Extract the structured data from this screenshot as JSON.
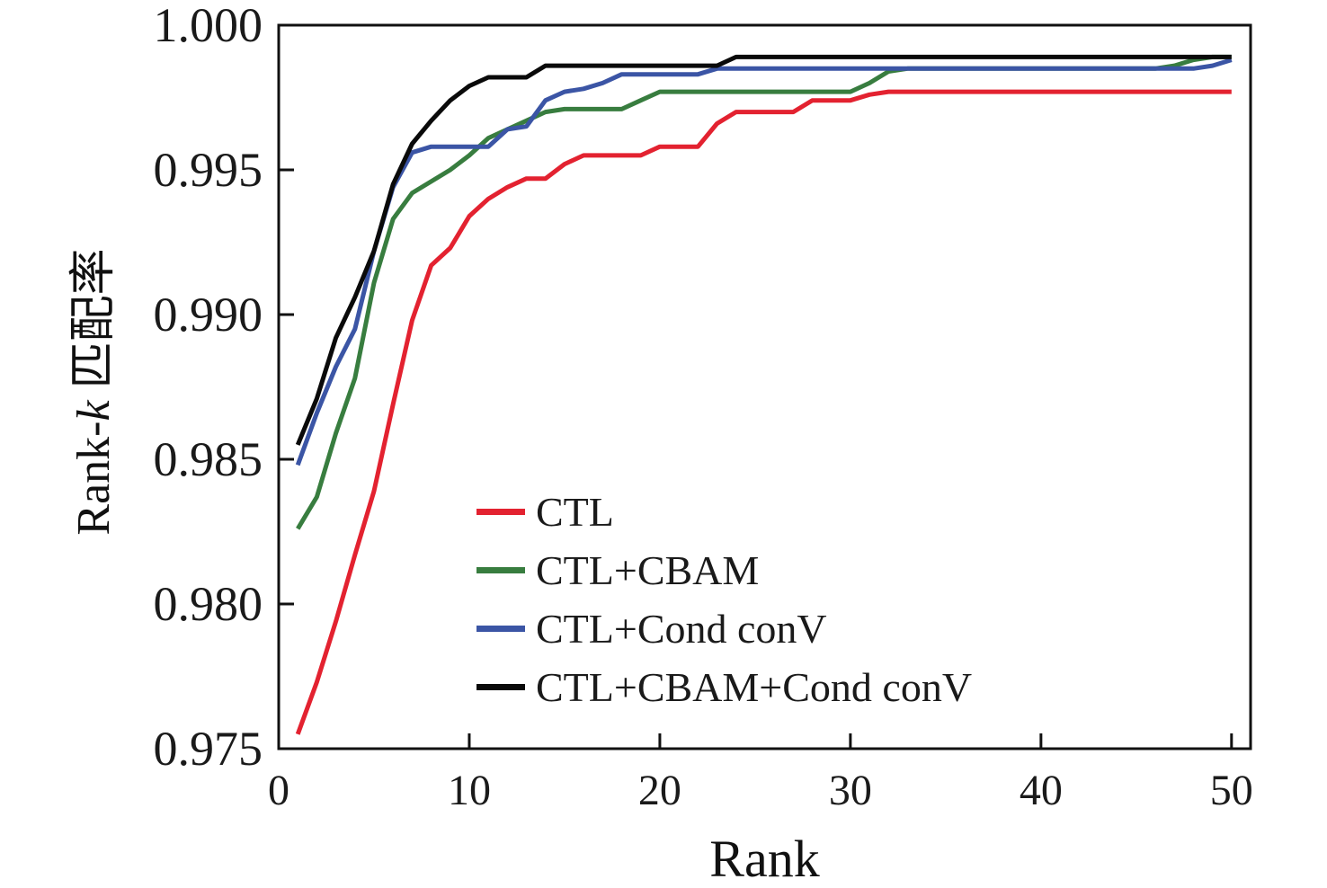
{
  "chart_data": {
    "type": "line",
    "title": "",
    "xlabel": "Rank",
    "ylabel": "Rank-k 匹配率",
    "ylabel_parts": {
      "prefix": "Rank-",
      "italic": "k",
      "suffix": " 匹配率"
    },
    "xlim": [
      0,
      51
    ],
    "ylim": [
      0.975,
      1.0
    ],
    "grid": false,
    "legend_position": "inside lower-center-left",
    "x_ticks": {
      "values": [
        0,
        10,
        20,
        30,
        40,
        50
      ],
      "labels": [
        "0",
        "10",
        "20",
        "30",
        "40",
        "50"
      ]
    },
    "y_ticks": {
      "values": [
        1.0,
        0.995,
        0.99,
        0.985,
        0.98,
        0.975
      ],
      "labels": [
        "1.000",
        "0.995",
        "0.990",
        "0.985",
        "0.980",
        "0.975"
      ]
    },
    "x": [
      1,
      2,
      3,
      4,
      5,
      6,
      7,
      8,
      9,
      10,
      11,
      12,
      13,
      14,
      15,
      16,
      17,
      18,
      19,
      20,
      21,
      22,
      23,
      24,
      25,
      26,
      27,
      28,
      29,
      30,
      31,
      32,
      33,
      34,
      35,
      36,
      37,
      38,
      39,
      40,
      41,
      42,
      43,
      44,
      45,
      46,
      47,
      48,
      49,
      50
    ],
    "series": [
      {
        "name": "CTL",
        "color": "#e32230",
        "values": [
          0.9755,
          0.9773,
          0.9794,
          0.9817,
          0.9839,
          0.9869,
          0.9898,
          0.9917,
          0.9923,
          0.9934,
          0.994,
          0.9944,
          0.9947,
          0.9947,
          0.9952,
          0.9955,
          0.9955,
          0.9955,
          0.9955,
          0.9958,
          0.9958,
          0.9958,
          0.9966,
          0.997,
          0.997,
          0.997,
          0.997,
          0.9974,
          0.9974,
          0.9974,
          0.9976,
          0.9977,
          0.9977,
          0.9977,
          0.9977,
          0.9977,
          0.9977,
          0.9977,
          0.9977,
          0.9977,
          0.9977,
          0.9977,
          0.9977,
          0.9977,
          0.9977,
          0.9977,
          0.9977,
          0.9977,
          0.9977,
          0.9977
        ]
      },
      {
        "name": "CTL+CBAM",
        "color": "#387d3f",
        "values": [
          0.9826,
          0.9837,
          0.9859,
          0.9878,
          0.9911,
          0.9933,
          0.9942,
          0.9946,
          0.995,
          0.9955,
          0.9961,
          0.9964,
          0.9967,
          0.997,
          0.9971,
          0.9971,
          0.9971,
          0.9971,
          0.9974,
          0.9977,
          0.9977,
          0.9977,
          0.9977,
          0.9977,
          0.9977,
          0.9977,
          0.9977,
          0.9977,
          0.9977,
          0.9977,
          0.998,
          0.9984,
          0.9985,
          0.9985,
          0.9985,
          0.9985,
          0.9985,
          0.9985,
          0.9985,
          0.9985,
          0.9985,
          0.9985,
          0.9985,
          0.9985,
          0.9985,
          0.9985,
          0.9986,
          0.9988,
          0.9989,
          0.9989
        ]
      },
      {
        "name": "CTL+Cond conV",
        "color": "#3b55a5",
        "values": [
          0.9848,
          0.9866,
          0.9882,
          0.9895,
          0.9922,
          0.9944,
          0.9956,
          0.9958,
          0.9958,
          0.9958,
          0.9958,
          0.9964,
          0.9965,
          0.9974,
          0.9977,
          0.9978,
          0.998,
          0.9983,
          0.9983,
          0.9983,
          0.9983,
          0.9983,
          0.9985,
          0.9985,
          0.9985,
          0.9985,
          0.9985,
          0.9985,
          0.9985,
          0.9985,
          0.9985,
          0.9985,
          0.9985,
          0.9985,
          0.9985,
          0.9985,
          0.9985,
          0.9985,
          0.9985,
          0.9985,
          0.9985,
          0.9985,
          0.9985,
          0.9985,
          0.9985,
          0.9985,
          0.9985,
          0.9985,
          0.9986,
          0.9988
        ]
      },
      {
        "name": "CTL+CBAM+Cond conV",
        "color": "#0a0a0a",
        "values": [
          0.9855,
          0.9871,
          0.9892,
          0.9906,
          0.9922,
          0.9945,
          0.9959,
          0.9967,
          0.9974,
          0.9979,
          0.9982,
          0.9982,
          0.9982,
          0.9986,
          0.9986,
          0.9986,
          0.9986,
          0.9986,
          0.9986,
          0.9986,
          0.9986,
          0.9986,
          0.9986,
          0.9989,
          0.9989,
          0.9989,
          0.9989,
          0.9989,
          0.9989,
          0.9989,
          0.9989,
          0.9989,
          0.9989,
          0.9989,
          0.9989,
          0.9989,
          0.9989,
          0.9989,
          0.9989,
          0.9989,
          0.9989,
          0.9989,
          0.9989,
          0.9989,
          0.9989,
          0.9989,
          0.9989,
          0.9989,
          0.9989,
          0.9989
        ]
      }
    ],
    "axis_color": "#111111"
  }
}
